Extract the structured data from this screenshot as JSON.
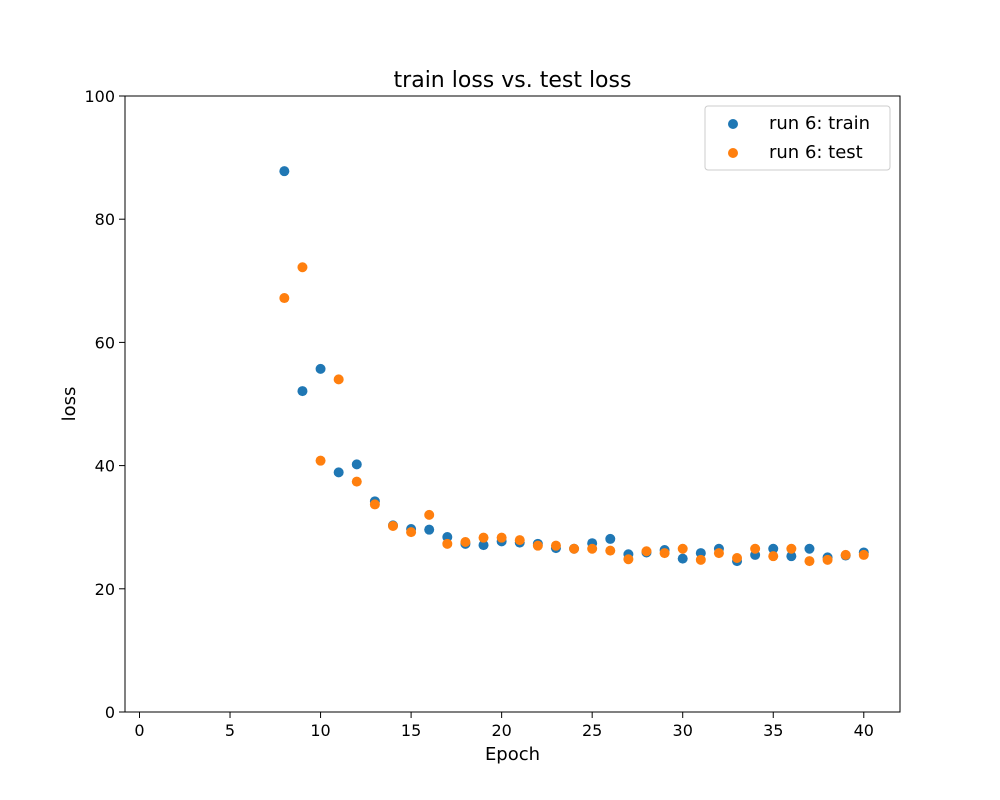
{
  "chart_data": {
    "type": "scatter",
    "title": "train loss vs. test loss",
    "xlabel": "Epoch",
    "ylabel": "loss",
    "xlim": [
      -0.8,
      42
    ],
    "ylim": [
      0,
      100
    ],
    "x_ticks": [
      0,
      5,
      10,
      15,
      20,
      25,
      30,
      35,
      40
    ],
    "y_ticks": [
      0,
      20,
      40,
      60,
      80,
      100
    ],
    "grid": false,
    "legend_position": "top-right",
    "series": [
      {
        "name": "run 6: train",
        "color": "#1f77b4",
        "x": [
          8,
          9,
          10,
          11,
          12,
          13,
          14,
          15,
          16,
          17,
          18,
          19,
          20,
          21,
          22,
          23,
          24,
          25,
          26,
          27,
          28,
          29,
          30,
          31,
          32,
          33,
          34,
          35,
          36,
          37,
          38,
          39,
          40
        ],
        "y": [
          87.8,
          52.1,
          55.7,
          38.9,
          40.2,
          34.2,
          30.3,
          29.7,
          29.6,
          28.4,
          27.3,
          27.1,
          27.7,
          27.5,
          27.3,
          26.6,
          26.5,
          27.4,
          28.1,
          25.6,
          25.9,
          26.3,
          24.9,
          25.8,
          26.5,
          24.5,
          25.5,
          26.5,
          25.3,
          26.5,
          25.1,
          25.4,
          25.9
        ]
      },
      {
        "name": "run 6: test",
        "color": "#ff7f0e",
        "x": [
          8,
          9,
          10,
          11,
          12,
          13,
          14,
          15,
          16,
          17,
          18,
          19,
          20,
          21,
          22,
          23,
          24,
          25,
          26,
          27,
          28,
          29,
          30,
          31,
          32,
          33,
          34,
          35,
          36,
          37,
          38,
          39,
          40
        ],
        "y": [
          67.2,
          72.2,
          40.8,
          54.0,
          37.4,
          33.7,
          30.2,
          29.2,
          32.0,
          27.3,
          27.6,
          28.3,
          28.3,
          27.9,
          27.0,
          27.0,
          26.5,
          26.5,
          26.2,
          24.8,
          26.1,
          25.8,
          26.5,
          24.7,
          25.8,
          25.0,
          26.5,
          25.3,
          26.5,
          24.5,
          24.7,
          25.5,
          25.5
        ]
      }
    ]
  }
}
